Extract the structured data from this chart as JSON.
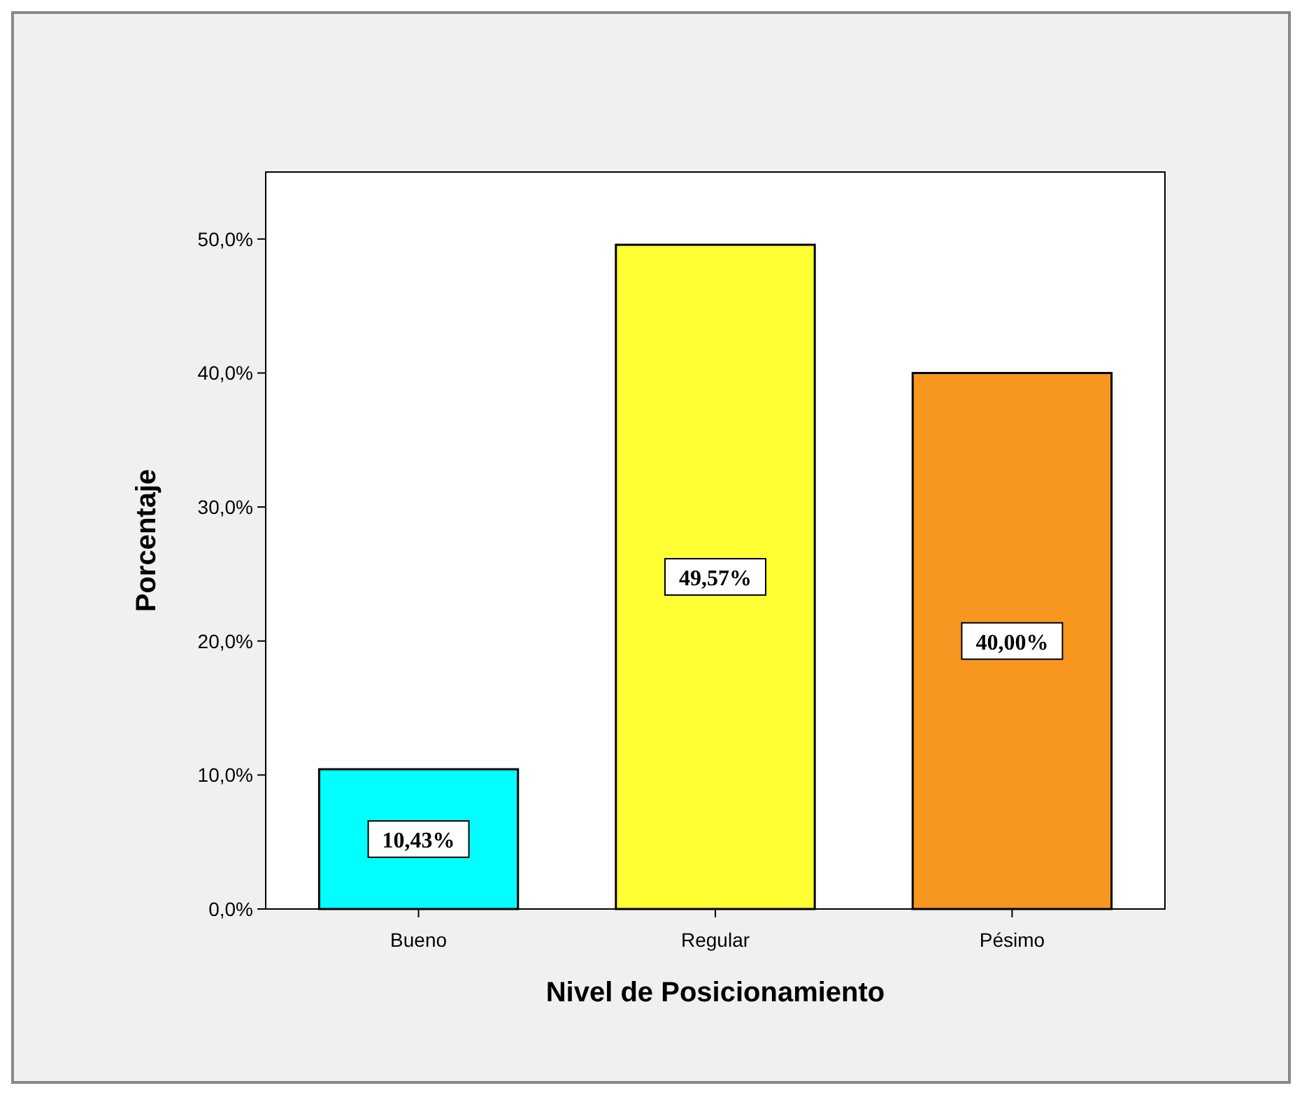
{
  "chart_data": {
    "type": "bar",
    "xlabel": "Nivel de Posicionamiento",
    "ylabel": "Porcentaje",
    "categories": [
      "Bueno",
      "Regular",
      "Pésimo"
    ],
    "values": [
      10.43,
      49.57,
      40.0
    ],
    "colors": [
      "#00ffff",
      "#ffff33",
      "#f7971f"
    ],
    "value_labels": [
      "10,43%",
      "49,57%",
      "40,00%"
    ],
    "ylim": [
      0,
      55
    ],
    "yticks": [
      {
        "value": 0,
        "label": "0,0%"
      },
      {
        "value": 10,
        "label": "10,0%"
      },
      {
        "value": 20,
        "label": "20,0%"
      },
      {
        "value": 30,
        "label": "30,0%"
      },
      {
        "value": 40,
        "label": "40,0%"
      },
      {
        "value": 50,
        "label": "50,0%"
      }
    ],
    "grid": false
  }
}
